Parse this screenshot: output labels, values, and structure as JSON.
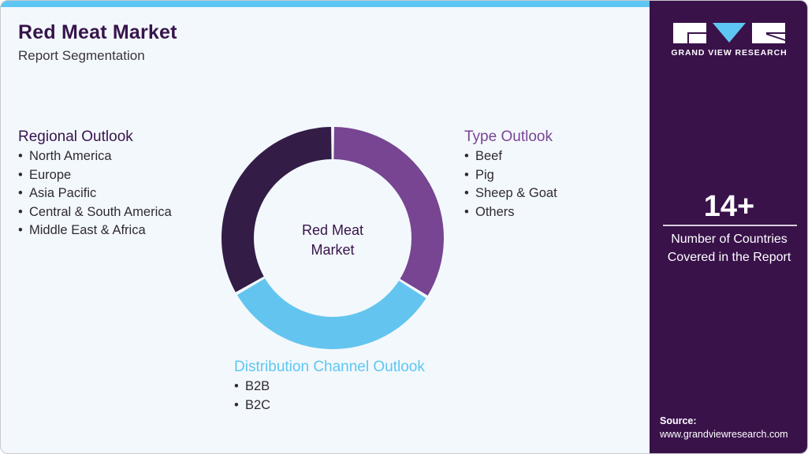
{
  "header": {
    "title": "Red Meat Market",
    "subtitle": "Report Segmentation"
  },
  "segments": {
    "regional": {
      "heading": "Regional Outlook",
      "items": [
        "North America",
        "Europe",
        "Asia Pacific",
        "Central & South America",
        "Middle East & Africa"
      ]
    },
    "type": {
      "heading": "Type Outlook",
      "items": [
        "Beef",
        "Pig",
        "Sheep & Goat",
        "Others"
      ]
    },
    "distribution": {
      "heading": "Distribution Channel Outlook",
      "items": [
        "B2B",
        "B2C"
      ]
    }
  },
  "donut": {
    "center_label_line1": "Red Meat",
    "center_label_line2": "Market",
    "segments": [
      {
        "name": "Type Outlook",
        "color": "#774592",
        "start_deg": 0,
        "end_deg": 122
      },
      {
        "name": "Distribution Channel Outlook",
        "color": "#63c5ef",
        "start_deg": 122,
        "end_deg": 240
      },
      {
        "name": "Regional Outlook",
        "color": "#331d47",
        "start_deg": 240,
        "end_deg": 360
      }
    ]
  },
  "sidebar": {
    "brand": "GRAND VIEW RESEARCH",
    "stat_value": "14+",
    "stat_line1": "Number of Countries",
    "stat_line2": "Covered in the Report",
    "source_label": "Source:",
    "source_url": "www.grandviewresearch.com"
  },
  "colors": {
    "accent_blue": "#5ec6f2",
    "brand_purple": "#39124a",
    "type_purple": "#7a4595",
    "background": "#f3f8fc"
  },
  "bullet": "•"
}
